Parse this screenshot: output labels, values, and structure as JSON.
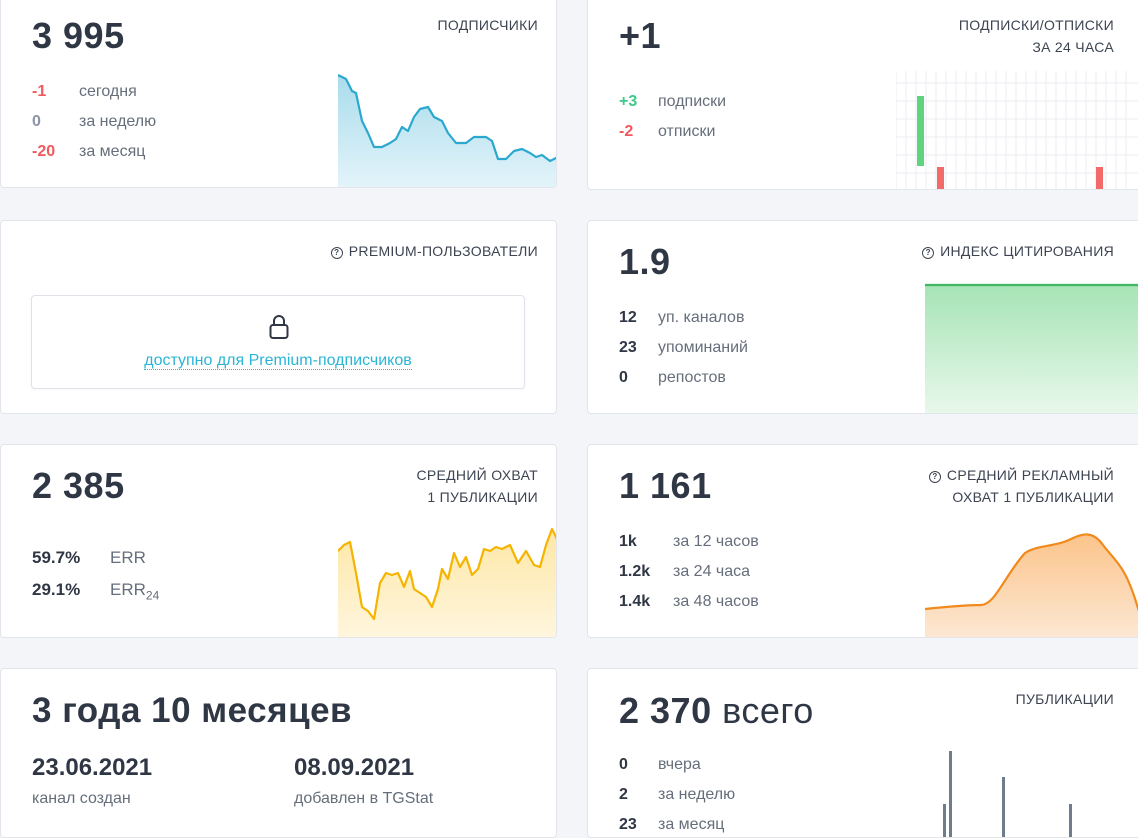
{
  "subscribers": {
    "value": "3 995",
    "label": "ПОДПИСЧИКИ",
    "rows": [
      {
        "value": "-1",
        "desc": "сегодня",
        "color": "red"
      },
      {
        "value": "0",
        "desc": "за неделю",
        "color": "grey"
      },
      {
        "value": "-20",
        "desc": "за месяц",
        "color": "red"
      }
    ]
  },
  "subs_unsubs": {
    "value": "+1",
    "label_line1": "ПОДПИСКИ/ОТПИСКИ",
    "label_line2": "ЗА 24 ЧАСА",
    "rows": [
      {
        "value": "+3",
        "desc": "подписки",
        "color": "green"
      },
      {
        "value": "-2",
        "desc": "отписки",
        "color": "red"
      }
    ]
  },
  "premium": {
    "label": "PREMIUM-ПОЛЬЗОВАТЕЛИ",
    "lock_text": "доступно для Premium-подписчиков",
    "icon": "lock-icon"
  },
  "citation": {
    "value": "1.9",
    "label": "ИНДЕКС ЦИТИРОВАНИЯ",
    "rows": [
      {
        "value": "12",
        "desc": "уп. каналов"
      },
      {
        "value": "23",
        "desc": "упоминаний"
      },
      {
        "value": "0",
        "desc": "репостов"
      }
    ]
  },
  "avg_reach": {
    "value": "2 385",
    "label_line1": "СРЕДНИЙ ОХВАТ",
    "label_line2": "1 ПУБЛИКАЦИИ",
    "err": {
      "value": "59.7%",
      "desc": "ERR"
    },
    "err24": {
      "value": "29.1%",
      "desc": "ERR",
      "sub": "24"
    }
  },
  "ad_reach": {
    "value": "1 161",
    "label_line1": "СРЕДНИЙ РЕКЛАМНЫЙ",
    "label_line2": "ОХВАТ 1 ПУБЛИКАЦИИ",
    "rows": [
      {
        "value": "1k",
        "desc": "за 12 часов"
      },
      {
        "value": "1.2k",
        "desc": "за 24 часа"
      },
      {
        "value": "1.4k",
        "desc": "за 48 часов"
      }
    ]
  },
  "age": {
    "value": "3 года 10 месяцев",
    "created_date": "23.06.2021",
    "created_label": "канал создан",
    "added_date": "08.09.2021",
    "added_label": "добавлен в TGStat"
  },
  "posts": {
    "value": "2 370",
    "unit": "всего",
    "label": "ПУБЛИКАЦИИ",
    "rows": [
      {
        "value": "0",
        "desc": "вчера"
      },
      {
        "value": "2",
        "desc": "за неделю"
      },
      {
        "value": "23",
        "desc": "за месяц"
      }
    ]
  },
  "colors": {
    "blue_line": "#2aa8cf",
    "yellow_line": "#f4b400",
    "orange_line": "#f08a1c",
    "green_line": "#42b865",
    "bar_grey": "#6f7c8c"
  }
}
